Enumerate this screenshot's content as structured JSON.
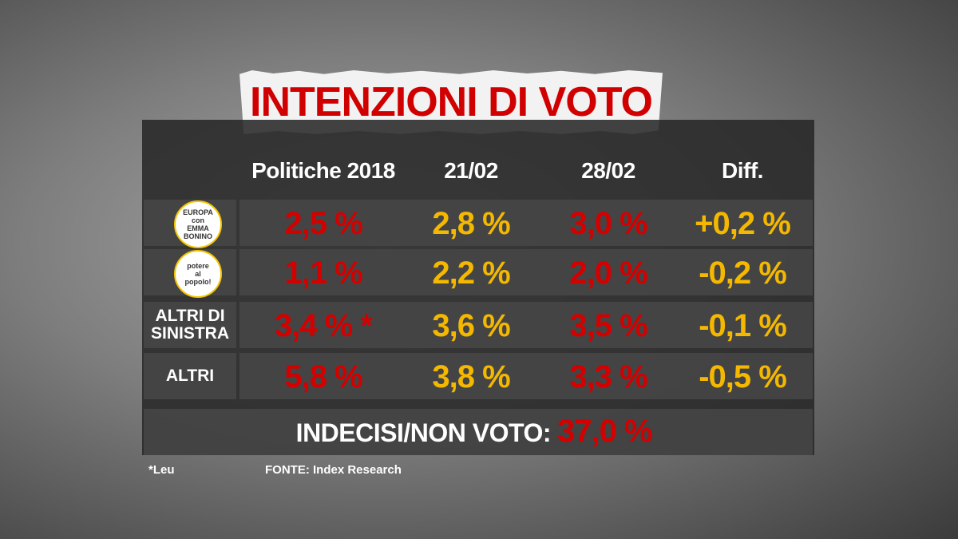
{
  "title": "INTENZIONI DI VOTO",
  "table": {
    "header": [
      "Politiche 2018",
      "21/02",
      "28/02",
      "Diff."
    ],
    "rows": [
      {
        "logo": [
          "EUROPA",
          "con",
          "EMMA",
          "BONINO"
        ],
        "values": [
          "2,5 %",
          "2,8 %",
          "3,0 %",
          "+0,2 %"
        ]
      },
      {
        "logo": [
          "potere",
          "al",
          "popolo!"
        ],
        "values": [
          "1,1 %",
          "2,2 %",
          "2,0 %",
          "-0,2 %"
        ]
      },
      {
        "label": [
          "ALTRI DI",
          "SINISTRA"
        ],
        "values": [
          "3,4 % *",
          "3,6 %",
          "3,5 %",
          "-0,1 %"
        ]
      },
      {
        "label": [
          "ALTRI"
        ],
        "values": [
          "5,8 %",
          "3,8 %",
          "3,3 %",
          "-0,5 %"
        ]
      }
    ],
    "undecided": {
      "label": "INDECISI/NON VOTO:",
      "value": "37,0 %"
    }
  },
  "footnote": "*Leu",
  "source": "FONTE:  Index Research"
}
